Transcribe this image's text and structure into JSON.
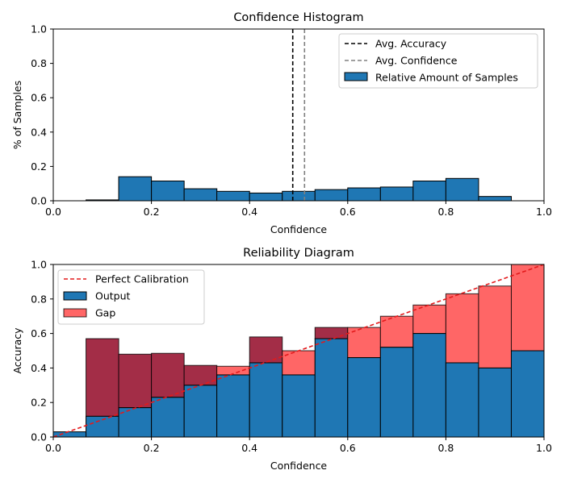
{
  "chart_data": [
    {
      "type": "bar",
      "name": "confidence-histogram",
      "title": "Confidence Histogram",
      "xlabel": "Confidence",
      "ylabel": "% of Samples",
      "xlim": [
        0,
        1
      ],
      "ylim": [
        0,
        1
      ],
      "xticks": [
        "0.0",
        "0.2",
        "0.4",
        "0.6",
        "0.8",
        "1.0"
      ],
      "yticks": [
        "0.0",
        "0.2",
        "0.4",
        "0.6",
        "0.8",
        "1.0"
      ],
      "bin_width": 0.0667,
      "bins_start": [
        0.0,
        0.0667,
        0.1333,
        0.2,
        0.2667,
        0.3333,
        0.4,
        0.4667,
        0.5333,
        0.6,
        0.6667,
        0.7333,
        0.8,
        0.8667,
        0.9333
      ],
      "values": [
        0.0,
        0.005,
        0.14,
        0.115,
        0.07,
        0.055,
        0.045,
        0.055,
        0.065,
        0.075,
        0.08,
        0.115,
        0.13,
        0.025,
        0.0
      ],
      "avg_accuracy": 0.488,
      "avg_confidence": 0.512,
      "legend": {
        "position": "top-right",
        "entries": [
          "Avg. Accuracy",
          "Avg. Confidence",
          "Relative Amount of Samples"
        ]
      },
      "colors": {
        "bars": "#1f77b4",
        "accuracy_line": "#000000",
        "confidence_line": "#808080"
      }
    },
    {
      "type": "bar",
      "name": "reliability-diagram",
      "title": "Reliability Diagram",
      "xlabel": "Confidence",
      "ylabel": "Accuracy",
      "xlim": [
        0,
        1
      ],
      "ylim": [
        0,
        1
      ],
      "xticks": [
        "0.0",
        "0.2",
        "0.4",
        "0.6",
        "0.8",
        "1.0"
      ],
      "yticks": [
        "0.0",
        "0.2",
        "0.4",
        "0.6",
        "0.8",
        "1.0"
      ],
      "bin_width": 0.0667,
      "bins_start": [
        0.0,
        0.0667,
        0.1333,
        0.2,
        0.2667,
        0.3333,
        0.4,
        0.4667,
        0.5333,
        0.6,
        0.6667,
        0.7333,
        0.8,
        0.8667,
        0.9333
      ],
      "output": [
        0.03,
        0.12,
        0.17,
        0.23,
        0.3,
        0.36,
        0.43,
        0.36,
        0.57,
        0.46,
        0.52,
        0.6,
        0.43,
        0.4,
        0.5
      ],
      "confidence": [
        0.03,
        0.57,
        0.48,
        0.485,
        0.415,
        0.41,
        0.58,
        0.5,
        0.635,
        0.635,
        0.7,
        0.765,
        0.83,
        0.875,
        1.0
      ],
      "legend": {
        "position": "top-left",
        "entries": [
          "Perfect Calibration",
          "Output",
          "Gap"
        ]
      },
      "colors": {
        "output": "#1f77b4",
        "gap": "#ff6666",
        "gap_overconfident": "#a32d47",
        "perfect": "#e31a1c"
      }
    }
  ]
}
